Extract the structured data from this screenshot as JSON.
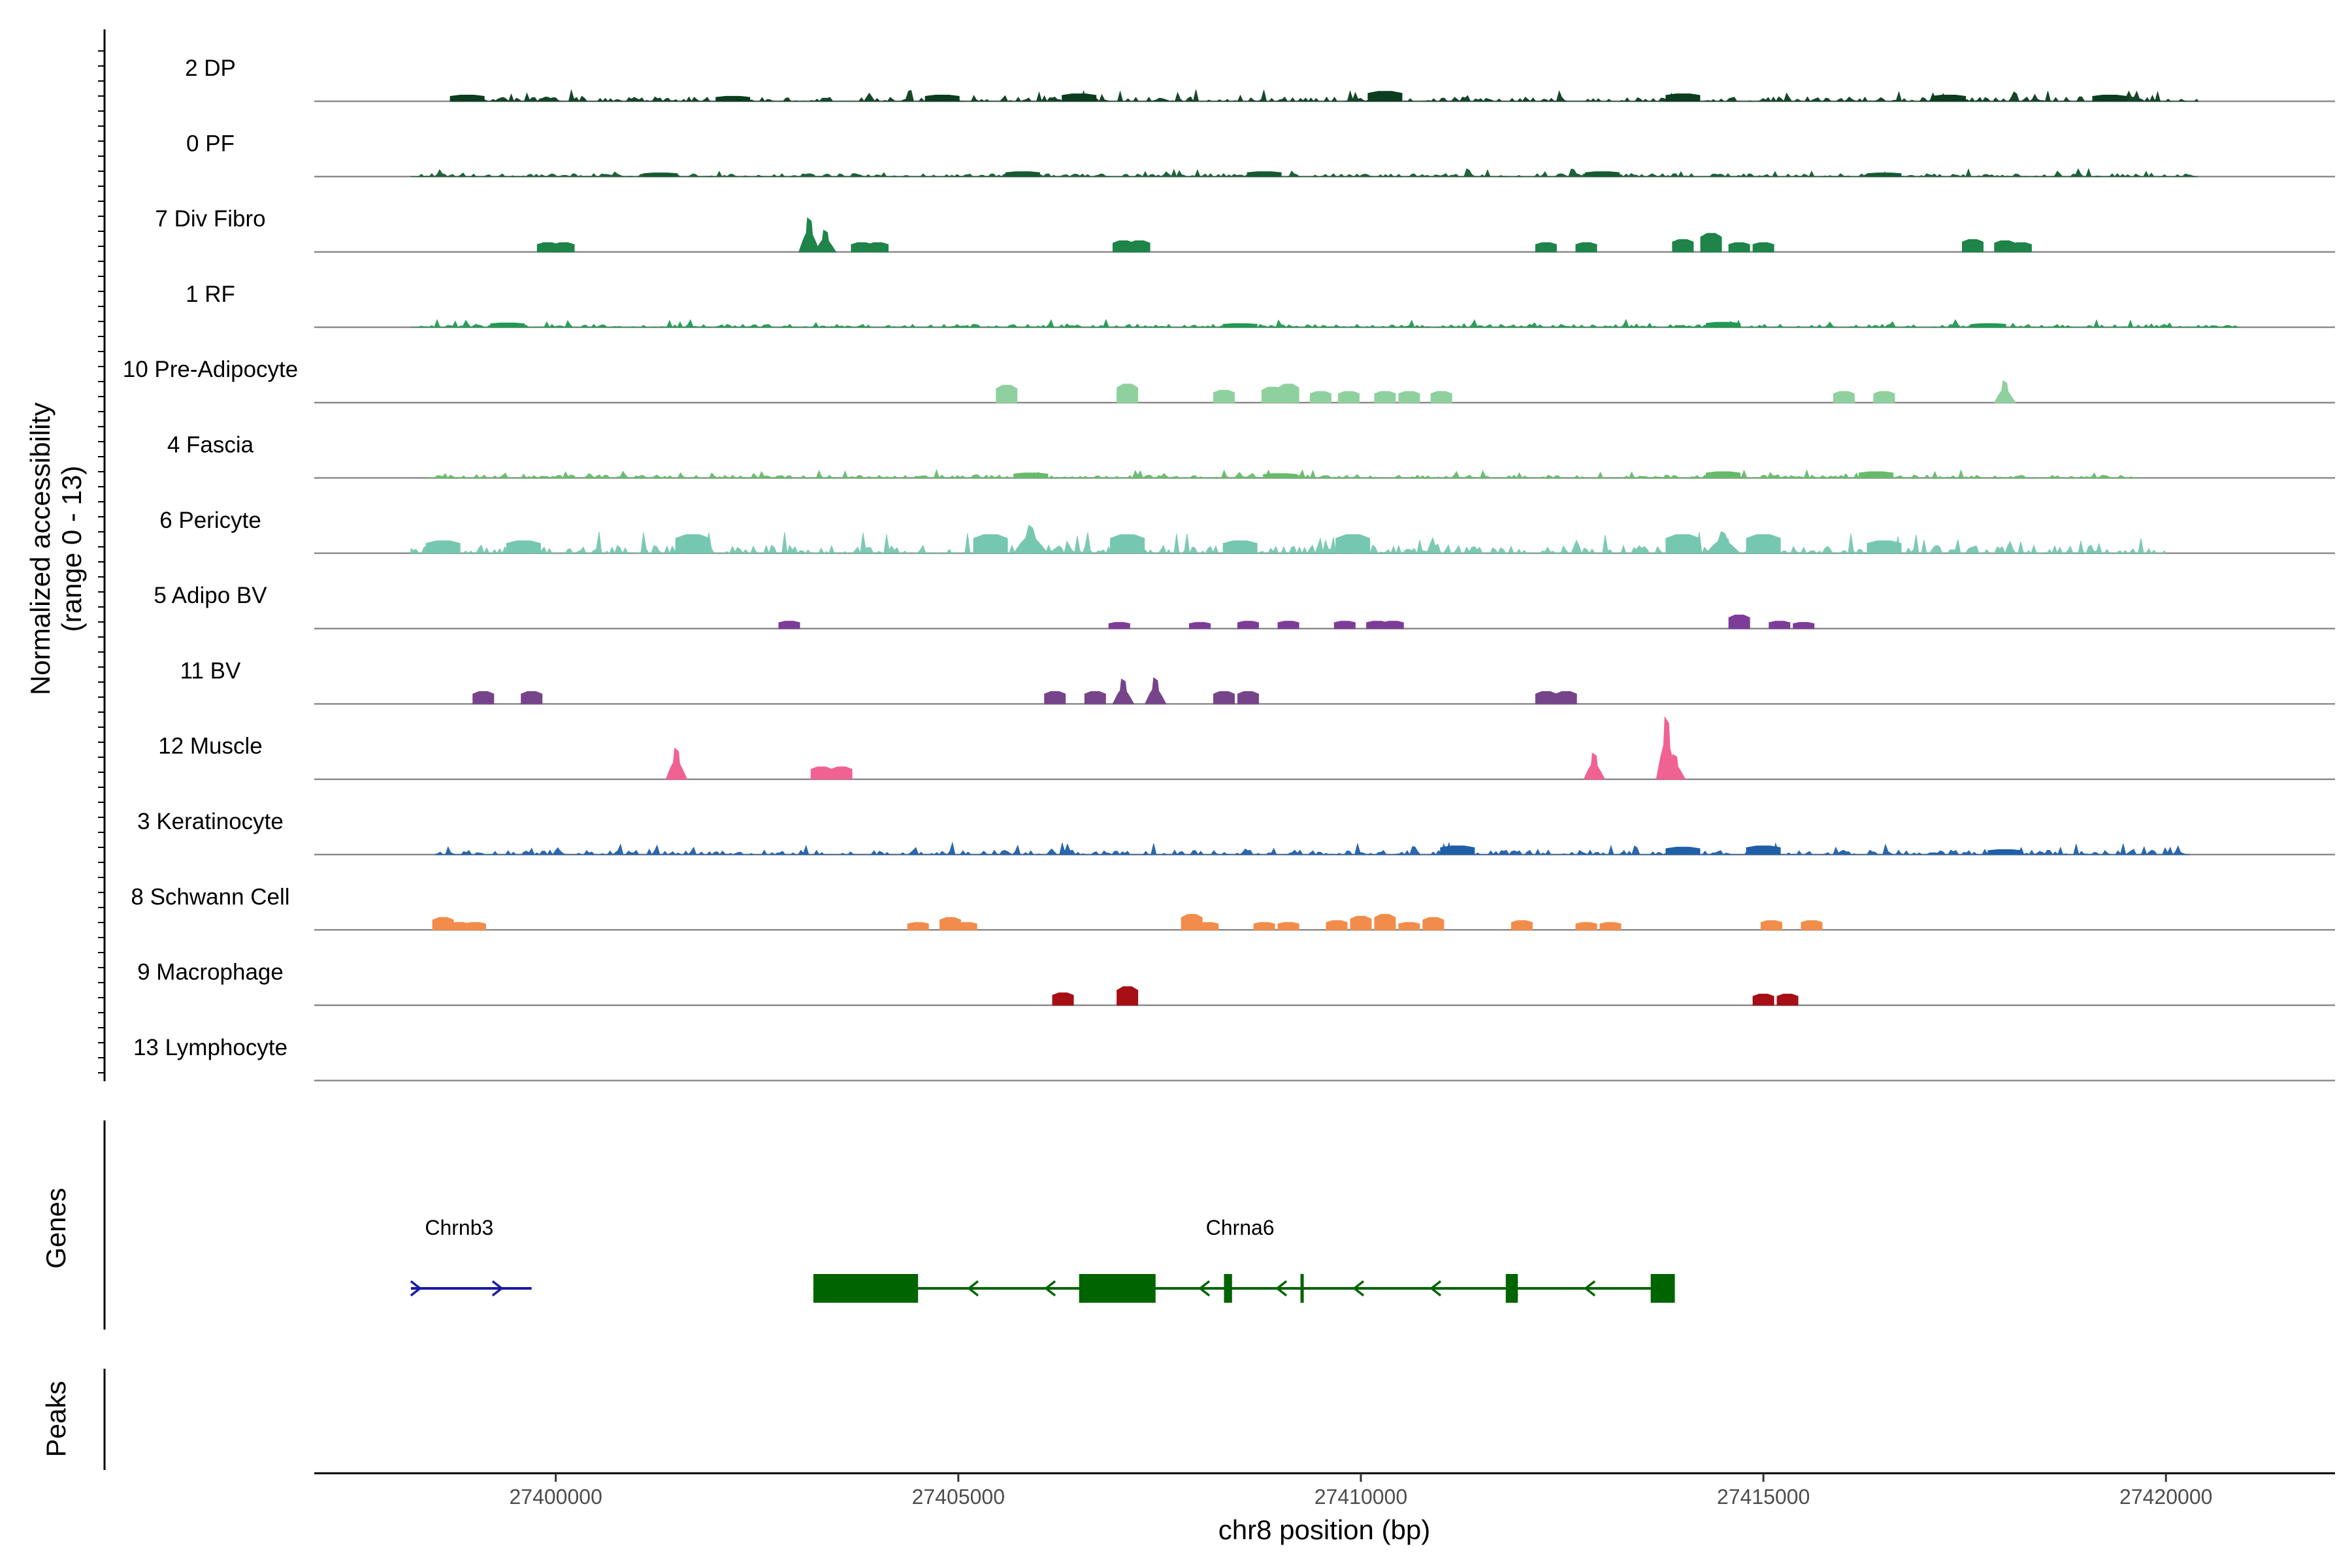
{
  "chart_data": {
    "type": "area",
    "title": "",
    "ylabel_line1": "Normalized accessibility",
    "ylabel_line2": "(range 0 - 13)",
    "genes_panel_label": "Genes",
    "peaks_panel_label": "Peaks",
    "xlabel": "chr8 position (bp)",
    "xlim": [
      27397000,
      27422100
    ],
    "x_ticks": [
      27400000,
      27405000,
      27410000,
      27415000,
      27420000
    ],
    "x_tick_labels": [
      "27400000",
      "27405000",
      "27410000",
      "27415000",
      "27420000"
    ],
    "tracks": [
      {
        "name": "2 DP",
        "color": "#0b3d1e",
        "pattern": "dense",
        "start": 27398700,
        "end": 27420400,
        "amp": 0.12,
        "peaks": [
          [
            27398900,
            0.1
          ],
          [
            27402200,
            0.08
          ],
          [
            27404800,
            0.1
          ],
          [
            27406500,
            0.12
          ],
          [
            27410300,
            0.16
          ],
          [
            27414000,
            0.12
          ],
          [
            27417300,
            0.1
          ],
          [
            27419300,
            0.1
          ]
        ]
      },
      {
        "name": "0 PF",
        "color": "#145a32",
        "pattern": "dense",
        "start": 27398200,
        "end": 27420400,
        "amp": 0.08,
        "peaks": [
          [
            27401300,
            0.06
          ],
          [
            27405800,
            0.08
          ],
          [
            27408800,
            0.08
          ],
          [
            27413000,
            0.08
          ],
          [
            27416500,
            0.06
          ]
        ]
      },
      {
        "name": "7 Div Fibro",
        "color": "#1e8449",
        "pattern": "sparse",
        "peaks": [
          [
            27399900,
            0.15
          ],
          [
            27400100,
            0.15
          ],
          [
            27403150,
            0.55
          ],
          [
            27403350,
            0.35
          ],
          [
            27403800,
            0.15
          ],
          [
            27404000,
            0.15
          ],
          [
            27407050,
            0.18
          ],
          [
            27407250,
            0.18
          ],
          [
            27412300,
            0.15
          ],
          [
            27412800,
            0.15
          ],
          [
            27414000,
            0.2
          ],
          [
            27414350,
            0.3
          ],
          [
            27414700,
            0.15
          ],
          [
            27415000,
            0.15
          ],
          [
            27417600,
            0.2
          ],
          [
            27418000,
            0.18
          ],
          [
            27418200,
            0.15
          ]
        ]
      },
      {
        "name": "1 RF",
        "color": "#229954",
        "pattern": "dense",
        "start": 27398200,
        "end": 27420900,
        "amp": 0.08,
        "peaks": [
          [
            27399400,
            0.07
          ],
          [
            27408500,
            0.06
          ],
          [
            27414500,
            0.08
          ],
          [
            27417800,
            0.06
          ]
        ]
      },
      {
        "name": "10 Pre-Adipocyte",
        "color": "#8fd19e",
        "pattern": "sparse",
        "peaks": [
          [
            27405600,
            0.28
          ],
          [
            27407100,
            0.3
          ],
          [
            27408300,
            0.2
          ],
          [
            27408900,
            0.25
          ],
          [
            27409100,
            0.3
          ],
          [
            27409500,
            0.18
          ],
          [
            27409850,
            0.18
          ],
          [
            27410300,
            0.18
          ],
          [
            27410600,
            0.18
          ],
          [
            27411000,
            0.18
          ],
          [
            27416000,
            0.18
          ],
          [
            27416500,
            0.18
          ],
          [
            27418000,
            0.35
          ]
        ]
      },
      {
        "name": "4 Fascia",
        "color": "#66bb6a",
        "pattern": "dense",
        "start": 27398400,
        "end": 27419700,
        "amp": 0.08,
        "peaks": [
          [
            27405900,
            0.08
          ],
          [
            27409000,
            0.07
          ],
          [
            27414500,
            0.1
          ],
          [
            27416400,
            0.1
          ]
        ]
      },
      {
        "name": "6 Pericyte",
        "color": "#76c7b0",
        "pattern": "dense",
        "start": 27398200,
        "end": 27420000,
        "amp": 0.22,
        "peaks": [
          [
            27398600,
            0.2
          ],
          [
            27399600,
            0.2
          ],
          [
            27401700,
            0.3
          ],
          [
            27405400,
            0.3
          ],
          [
            27405900,
            0.45
          ],
          [
            27407100,
            0.3
          ],
          [
            27408500,
            0.2
          ],
          [
            27409900,
            0.3
          ],
          [
            27414000,
            0.3
          ],
          [
            27414500,
            0.35
          ],
          [
            27415000,
            0.3
          ],
          [
            27416500,
            0.2
          ]
        ]
      },
      {
        "name": "5 Adipo BV",
        "color": "#7d3c98",
        "pattern": "sparse",
        "peaks": [
          [
            27402900,
            0.12
          ],
          [
            27407000,
            0.1
          ],
          [
            27408000,
            0.1
          ],
          [
            27408600,
            0.12
          ],
          [
            27409100,
            0.12
          ],
          [
            27409800,
            0.12
          ],
          [
            27410200,
            0.12
          ],
          [
            27410400,
            0.12
          ],
          [
            27414700,
            0.22
          ],
          [
            27415200,
            0.12
          ],
          [
            27415500,
            0.1
          ]
        ]
      },
      {
        "name": "11 BV",
        "color": "#76448a",
        "pattern": "sparse",
        "peaks": [
          [
            27399100,
            0.2
          ],
          [
            27399700,
            0.2
          ],
          [
            27406200,
            0.2
          ],
          [
            27406700,
            0.2
          ],
          [
            27407050,
            0.4
          ],
          [
            27407450,
            0.42
          ],
          [
            27408300,
            0.2
          ],
          [
            27408600,
            0.2
          ],
          [
            27412300,
            0.2
          ],
          [
            27412550,
            0.2
          ]
        ]
      },
      {
        "name": "12 Muscle",
        "color": "#f06292",
        "pattern": "sparse",
        "peaks": [
          [
            27401500,
            0.5
          ],
          [
            27403300,
            0.2
          ],
          [
            27403550,
            0.2
          ],
          [
            27412900,
            0.42
          ],
          [
            27413800,
            1.0
          ],
          [
            27413900,
            0.4
          ]
        ]
      },
      {
        "name": "3 Keratinocyte",
        "color": "#1f5fa8",
        "pattern": "dense",
        "start": 27398500,
        "end": 27420300,
        "amp": 0.12,
        "peaks": [
          [
            27411200,
            0.14
          ],
          [
            27414000,
            0.12
          ],
          [
            27415000,
            0.14
          ],
          [
            27418000,
            0.08
          ]
        ]
      },
      {
        "name": "8 Schwann Cell",
        "color": "#f28c4b",
        "pattern": "sparse",
        "peaks": [
          [
            27398600,
            0.2
          ],
          [
            27398800,
            0.12
          ],
          [
            27399000,
            0.12
          ],
          [
            27404500,
            0.12
          ],
          [
            27404900,
            0.2
          ],
          [
            27405100,
            0.12
          ],
          [
            27407900,
            0.25
          ],
          [
            27408100,
            0.12
          ],
          [
            27408800,
            0.12
          ],
          [
            27409100,
            0.12
          ],
          [
            27409700,
            0.15
          ],
          [
            27410000,
            0.22
          ],
          [
            27410300,
            0.25
          ],
          [
            27410600,
            0.12
          ],
          [
            27410900,
            0.2
          ],
          [
            27412000,
            0.15
          ],
          [
            27412800,
            0.12
          ],
          [
            27413100,
            0.12
          ],
          [
            27415100,
            0.15
          ],
          [
            27415600,
            0.15
          ]
        ]
      },
      {
        "name": "9 Macrophage",
        "color": "#a50f15",
        "pattern": "sparse",
        "peaks": [
          [
            27406300,
            0.2
          ],
          [
            27407100,
            0.3
          ],
          [
            27415000,
            0.18
          ],
          [
            27415300,
            0.18
          ]
        ]
      },
      {
        "name": "13 Lymphocyte",
        "color": "#808080",
        "pattern": "sparse",
        "peaks": []
      }
    ],
    "genes": [
      {
        "name": "Chrnb3",
        "color": "#1a1aa6",
        "strand": "+",
        "start": 27398200,
        "end": 27399700,
        "label_x": 27398800,
        "exons": []
      },
      {
        "name": "Chrna6",
        "color": "#006400",
        "strand": "-",
        "start": 27403200,
        "end": 27413900,
        "label_x": 27408500,
        "exons": [
          [
            27403200,
            27404500
          ],
          [
            27406500,
            27407450
          ],
          [
            27408300,
            27408400
          ],
          [
            27409250,
            27409290
          ],
          [
            27411800,
            27411950
          ],
          [
            27413600,
            27413900
          ]
        ]
      }
    ]
  }
}
